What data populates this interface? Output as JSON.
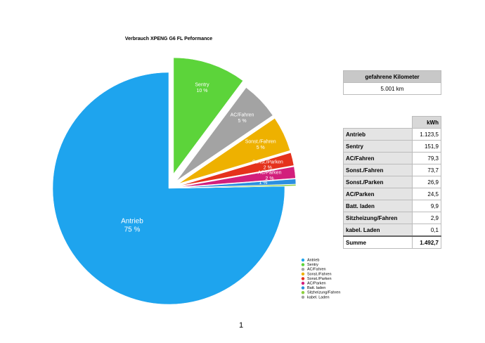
{
  "chart_data": {
    "type": "pie",
    "title": "Verbrauch XPENG G6 FL Peformance",
    "categories": [
      "Antrieb",
      "Sentry",
      "AC/Fahren",
      "Sonst./Fahren",
      "Sonst./Parken",
      "AC/Parken",
      "Batt. laden",
      "Sitzheizung/Fahren",
      "kabel. Laden"
    ],
    "values": [
      75.3,
      10.2,
      5.3,
      4.9,
      1.8,
      1.6,
      0.7,
      0.2,
      0.01
    ],
    "value_labels": [
      "75 %",
      "10 %",
      "5 %",
      "5 %",
      "2 %",
      "2 %",
      "1 %",
      null,
      null
    ],
    "colors": [
      "#1ea4ee",
      "#5cd43a",
      "#a3a3a3",
      "#eeb100",
      "#e5321c",
      "#d21f7c",
      "#2b8fe0",
      "#8ccf3e",
      "#a3a3a3"
    ]
  },
  "km_table": {
    "header": "gefahrene Kilometer",
    "value": "5.001 km"
  },
  "kwh_table": {
    "header": "kWh",
    "rows": [
      [
        "Antrieb",
        "1.123,5"
      ],
      [
        "Sentry",
        "151,9"
      ],
      [
        "AC/Fahren",
        "79,3"
      ],
      [
        "Sonst./Fahren",
        "73,7"
      ],
      [
        "Sonst./Parken",
        "26,9"
      ],
      [
        "AC/Parken",
        "24,5"
      ],
      [
        "Batt. laden",
        "9,9"
      ],
      [
        "Sitzheizung/Fahren",
        "2,9"
      ],
      [
        "kabel. Laden",
        "0,1"
      ]
    ],
    "total": [
      "Summe",
      "1.492,7"
    ]
  },
  "page_number": "1"
}
